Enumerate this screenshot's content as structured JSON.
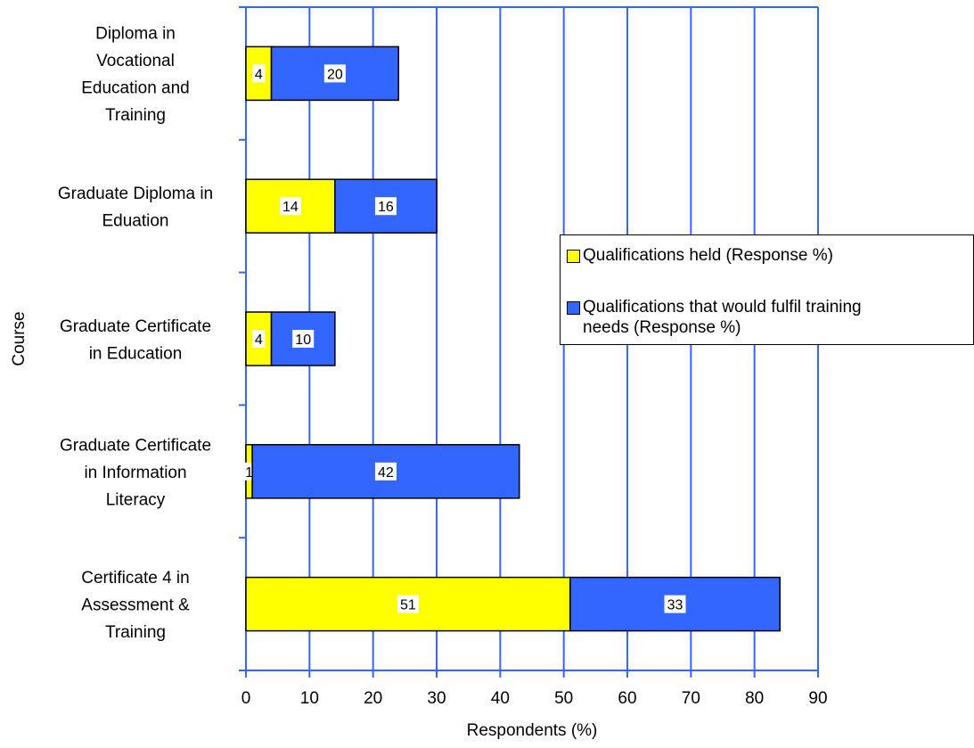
{
  "chart_data": {
    "type": "bar",
    "orientation": "horizontal",
    "stacked": true,
    "xlabel": "Respondents (%)",
    "ylabel": "Course",
    "xlim": [
      0,
      90
    ],
    "xticks": [
      0,
      10,
      20,
      30,
      40,
      50,
      60,
      70,
      80,
      90
    ],
    "grid": true,
    "legend_position": "right",
    "categories": [
      "Diploma in Vocational Education and Training",
      "Graduate Diploma in Eduation",
      "Graduate Certificate in Education",
      "Graduate Certificate in Information Literacy",
      "Certificate 4 in Assessment & Training"
    ],
    "category_label_lines": [
      [
        "Diploma in",
        "Vocational",
        "Education and",
        "Training"
      ],
      [
        "Graduate Diploma in",
        "Eduation"
      ],
      [
        "Graduate Certificate",
        "in Education"
      ],
      [
        "Graduate Certificate",
        "in Information",
        "Literacy"
      ],
      [
        "Certificate 4 in",
        "Assessment &",
        "Training"
      ]
    ],
    "series": [
      {
        "name": "Qualifications held (Response %)",
        "color": "#FFFF00",
        "values": [
          4,
          14,
          4,
          1,
          51
        ]
      },
      {
        "name": "Qualifications that would fulfil training needs (Response %)",
        "color": "#3366FF",
        "values": [
          20,
          16,
          10,
          42,
          33
        ]
      }
    ],
    "grid_color": "#3366FF"
  },
  "legend": {
    "items": [
      {
        "lines": [
          "Qualifications held (Response %)"
        ],
        "color": "#FFFF00"
      },
      {
        "lines": [
          "Qualifications that would fulfil training",
          "needs (Response %)"
        ],
        "color": "#3366FF"
      }
    ]
  }
}
